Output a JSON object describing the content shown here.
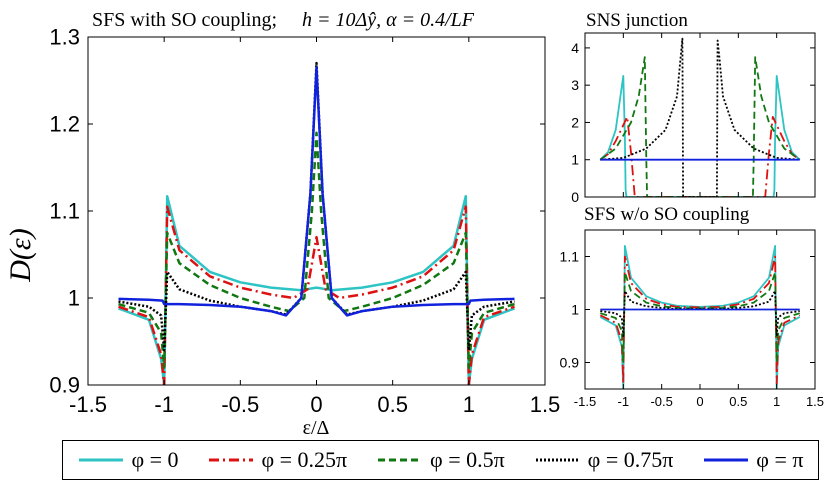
{
  "colors": {
    "phi_0": "#2ec4c4",
    "phi_025": "#dd1111",
    "phi_05": "#117711",
    "phi_075": "#000000",
    "phi_pi": "#1122dd"
  },
  "legend": [
    {
      "label": "φ = 0",
      "dash": "",
      "color": "#2ec4c4",
      "width": 2.5
    },
    {
      "label": "φ = 0.25π",
      "dash": "10,4,2,4",
      "color": "#dd1111",
      "width": 2.5
    },
    {
      "label": "φ = 0.5π",
      "dash": "7,4",
      "color": "#117711",
      "width": 2.5
    },
    {
      "label": "φ = 0.75π",
      "dash": "2,2",
      "color": "#000000",
      "width": 2.5
    },
    {
      "label": "φ = π",
      "dash": "",
      "color": "#1122dd",
      "width": 2.5
    }
  ],
  "chart_data": [
    {
      "type": "line",
      "title": "SFS with SO coupling;",
      "title_formula": "h = 10Δŷ, α = 0.4/LF",
      "xlabel": "ε/Δ",
      "ylabel": "D(ε)",
      "xlim": [
        -1.5,
        1.5
      ],
      "ylim": [
        0.9,
        1.3
      ],
      "xticks": [
        "-1.5",
        "-1",
        "-0.5",
        "0",
        "0.5",
        "1",
        "1.5"
      ],
      "yticks": [
        "0.9",
        "1",
        "1.1",
        "1.2",
        "1.3"
      ],
      "series": [
        {
          "name": "φ = 0",
          "x": [
            -1.3,
            -1.1,
            -1.02,
            -1.0,
            -0.98,
            -0.9,
            -0.7,
            -0.5,
            -0.3,
            -0.1,
            0.0,
            0.1,
            0.3,
            0.5,
            0.7,
            0.9,
            0.98,
            1.0,
            1.02,
            1.1,
            1.3
          ],
          "y": [
            0.988,
            0.975,
            0.93,
            0.9,
            1.117,
            1.06,
            1.03,
            1.018,
            1.012,
            1.009,
            1.012,
            1.009,
            1.012,
            1.018,
            1.03,
            1.06,
            1.117,
            0.9,
            0.93,
            0.975,
            0.988
          ]
        },
        {
          "name": "φ = 0.25π",
          "x": [
            -1.3,
            -1.1,
            -1.02,
            -1.0,
            -0.98,
            -0.9,
            -0.7,
            -0.5,
            -0.3,
            -0.15,
            -0.06,
            -0.02,
            0.0,
            0.02,
            0.06,
            0.15,
            0.3,
            0.5,
            0.7,
            0.9,
            0.98,
            1.0,
            1.02,
            1.1,
            1.3
          ],
          "y": [
            0.99,
            0.978,
            0.935,
            0.9,
            1.105,
            1.055,
            1.025,
            1.012,
            1.004,
            1.0,
            1.01,
            1.05,
            1.07,
            1.05,
            1.01,
            1.0,
            1.004,
            1.012,
            1.025,
            1.055,
            1.105,
            0.9,
            0.935,
            0.978,
            0.99
          ]
        },
        {
          "name": "φ = 0.5π",
          "x": [
            -1.3,
            -1.1,
            -1.02,
            -1.0,
            -0.98,
            -0.9,
            -0.7,
            -0.5,
            -0.3,
            -0.18,
            -0.08,
            -0.03,
            0.0,
            0.03,
            0.08,
            0.18,
            0.3,
            0.5,
            0.7,
            0.9,
            0.98,
            1.0,
            1.02,
            1.1,
            1.3
          ],
          "y": [
            0.993,
            0.983,
            0.96,
            0.92,
            1.075,
            1.04,
            1.015,
            1.0,
            0.99,
            0.985,
            1.0,
            1.1,
            1.19,
            1.1,
            1.0,
            0.985,
            0.99,
            1.0,
            1.015,
            1.04,
            1.075,
            0.92,
            0.96,
            0.983,
            0.993
          ]
        },
        {
          "name": "φ = 0.75π",
          "x": [
            -1.3,
            -1.1,
            -1.02,
            -1.0,
            -0.98,
            -0.9,
            -0.7,
            -0.5,
            -0.3,
            -0.2,
            -0.1,
            -0.04,
            0.0,
            0.04,
            0.1,
            0.2,
            0.3,
            0.5,
            0.7,
            0.9,
            0.98,
            1.0,
            1.02,
            1.1,
            1.3
          ],
          "y": [
            0.996,
            0.99,
            0.98,
            0.94,
            1.03,
            1.01,
            0.997,
            0.99,
            0.985,
            0.981,
            1.0,
            1.12,
            1.27,
            1.12,
            1.0,
            0.981,
            0.985,
            0.99,
            0.997,
            1.01,
            1.03,
            0.94,
            0.98,
            0.99,
            0.996
          ]
        },
        {
          "name": "φ = π",
          "x": [
            -1.3,
            -1.1,
            -1.01,
            -1.0,
            -0.99,
            -0.9,
            -0.7,
            -0.5,
            -0.3,
            -0.2,
            -0.1,
            -0.04,
            0.0,
            0.04,
            0.1,
            0.2,
            0.3,
            0.5,
            0.7,
            0.9,
            0.99,
            1.0,
            1.01,
            1.1,
            1.3
          ],
          "y": [
            0.999,
            0.998,
            0.997,
            0.993,
            0.993,
            0.993,
            0.992,
            0.99,
            0.985,
            0.98,
            1.0,
            1.12,
            1.265,
            1.12,
            1.0,
            0.98,
            0.985,
            0.99,
            0.992,
            0.993,
            0.993,
            0.993,
            0.997,
            0.998,
            0.999
          ]
        }
      ]
    },
    {
      "type": "line",
      "title": "SNS junction",
      "xlim": [
        -1.5,
        1.5
      ],
      "ylim": [
        0,
        4.4
      ],
      "yticks": [
        "0",
        "1",
        "2",
        "3",
        "4"
      ],
      "series": [
        {
          "name": "φ = 0",
          "x": [
            -1.3,
            -1.2,
            -1.1,
            -1.0,
            -0.98,
            -0.97,
            -0.96,
            -0.95,
            -0.95,
            0.95,
            0.95,
            0.96,
            0.97,
            0.98,
            1.0,
            1.1,
            1.2,
            1.3
          ],
          "y": [
            1.0,
            1.2,
            1.8,
            3.25,
            1.6,
            0.2,
            0.0,
            0.0,
            0.0,
            0.0,
            0.0,
            0.0,
            0.2,
            1.6,
            3.25,
            1.8,
            1.2,
            1.0
          ]
        },
        {
          "name": "φ = 0.25π",
          "x": [
            -1.3,
            -1.2,
            -1.1,
            -0.95,
            -0.9,
            -0.85,
            -0.85,
            0.85,
            0.85,
            0.9,
            0.95,
            1.1,
            1.2,
            1.3
          ],
          "y": [
            1.0,
            1.15,
            1.5,
            2.15,
            1.2,
            0.0,
            0.0,
            0.0,
            0.0,
            1.2,
            2.15,
            1.5,
            1.15,
            1.0
          ]
        },
        {
          "name": "φ = 0.5π",
          "x": [
            -1.3,
            -1.1,
            -0.9,
            -0.8,
            -0.72,
            -0.7,
            -0.69,
            0.69,
            0.7,
            0.72,
            0.8,
            0.9,
            1.1,
            1.3
          ],
          "y": [
            1.0,
            1.3,
            2.0,
            2.7,
            3.75,
            1.0,
            0.0,
            0.0,
            1.0,
            3.75,
            2.7,
            2.0,
            1.3,
            1.0
          ]
        },
        {
          "name": "φ = 0.75π",
          "x": [
            -1.3,
            -1.0,
            -0.7,
            -0.45,
            -0.3,
            -0.25,
            -0.23,
            -0.22,
            0.22,
            0.23,
            0.25,
            0.3,
            0.45,
            0.7,
            1.0,
            1.3
          ],
          "y": [
            1.0,
            1.05,
            1.3,
            1.8,
            2.7,
            3.8,
            4.25,
            0.0,
            0.0,
            4.2,
            3.8,
            2.7,
            1.8,
            1.3,
            1.05,
            1.0
          ]
        },
        {
          "name": "φ = π",
          "x": [
            -1.3,
            1.3
          ],
          "y": [
            1.0,
            1.0
          ]
        }
      ]
    },
    {
      "type": "line",
      "title": "SFS w/o SO coupling",
      "xlim": [
        -1.5,
        1.5
      ],
      "ylim": [
        0.85,
        1.15
      ],
      "xticks": [
        "-1.5",
        "-1",
        "-0.5",
        "0",
        "0.5",
        "1",
        "1.5"
      ],
      "yticks": [
        "0.9",
        "1",
        "1.1"
      ],
      "series": [
        {
          "name": "φ = 0",
          "x": [
            -1.3,
            -1.1,
            -1.02,
            -1.0,
            -0.98,
            -0.9,
            -0.7,
            -0.5,
            -0.3,
            0.0,
            0.3,
            0.5,
            0.7,
            0.9,
            0.98,
            1.0,
            1.02,
            1.1,
            1.3
          ],
          "y": [
            0.986,
            0.97,
            0.93,
            0.85,
            1.12,
            1.06,
            1.025,
            1.013,
            1.007,
            1.005,
            1.007,
            1.013,
            1.025,
            1.06,
            1.12,
            0.85,
            0.93,
            0.97,
            0.986
          ]
        },
        {
          "name": "φ = 0.25π",
          "x": [
            -1.3,
            -1.1,
            -1.02,
            -1.0,
            -0.98,
            -0.9,
            -0.7,
            -0.5,
            -0.3,
            0.0,
            0.3,
            0.5,
            0.7,
            0.9,
            0.98,
            1.0,
            1.02,
            1.1,
            1.3
          ],
          "y": [
            0.989,
            0.975,
            0.94,
            0.86,
            1.1,
            1.05,
            1.02,
            1.01,
            1.005,
            1.004,
            1.005,
            1.01,
            1.02,
            1.05,
            1.1,
            0.86,
            0.94,
            0.975,
            0.989
          ]
        },
        {
          "name": "φ = 0.5π",
          "x": [
            -1.3,
            -1.1,
            -1.02,
            -1.0,
            -0.98,
            -0.9,
            -0.7,
            -0.5,
            -0.3,
            0.0,
            0.3,
            0.5,
            0.7,
            0.9,
            0.98,
            1.0,
            1.02,
            1.1,
            1.3
          ],
          "y": [
            0.993,
            0.984,
            0.96,
            0.9,
            1.07,
            1.035,
            1.013,
            1.006,
            1.003,
            1.002,
            1.003,
            1.006,
            1.013,
            1.035,
            1.07,
            0.9,
            0.96,
            0.984,
            0.993
          ]
        },
        {
          "name": "φ = 0.75π",
          "x": [
            -1.3,
            -1.1,
            -1.02,
            -1.0,
            -0.98,
            -0.9,
            -0.7,
            -0.5,
            -0.3,
            0.0,
            0.3,
            0.5,
            0.7,
            0.9,
            0.98,
            1.0,
            1.02,
            1.1,
            1.3
          ],
          "y": [
            0.997,
            0.993,
            0.985,
            0.95,
            1.035,
            1.015,
            1.006,
            1.003,
            1.001,
            1.001,
            1.001,
            1.003,
            1.006,
            1.015,
            1.035,
            0.95,
            0.985,
            0.993,
            0.997
          ]
        },
        {
          "name": "φ = π",
          "x": [
            -1.3,
            1.3
          ],
          "y": [
            1.0,
            1.0
          ]
        }
      ]
    }
  ]
}
